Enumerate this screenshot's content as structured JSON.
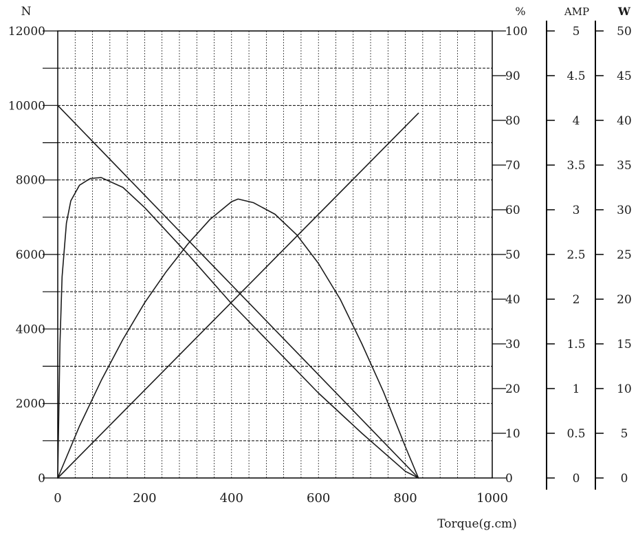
{
  "chart_data": {
    "type": "line",
    "title": "",
    "xlabel": "Torque(g.cm)",
    "xlim": [
      0,
      1000
    ],
    "x_ticks": [
      "0",
      "200",
      "400",
      "600",
      "800",
      "1000"
    ],
    "grid": true,
    "axes": {
      "speed": {
        "label": "N",
        "ylim": [
          0,
          12000
        ],
        "ticks": [
          "0",
          "2000",
          "4000",
          "6000",
          "8000",
          "10000",
          "12000"
        ]
      },
      "efficiency": {
        "label": "%",
        "ylim": [
          0,
          100
        ],
        "ticks": [
          "0",
          "10",
          "20",
          "30",
          "40",
          "50",
          "60",
          "70",
          "80",
          "90",
          "100"
        ]
      },
      "current": {
        "label": "AMP",
        "ylim": [
          0,
          5
        ],
        "ticks": [
          "0",
          "0.5",
          "1",
          "1.5",
          "2",
          "2.5",
          "3",
          "3.5",
          "4",
          "4.5",
          "5"
        ]
      },
      "power": {
        "label": "W",
        "ylim": [
          0,
          50
        ],
        "ticks": [
          "0",
          "5",
          "10",
          "15",
          "20",
          "25",
          "30",
          "35",
          "40",
          "45",
          "50"
        ]
      }
    },
    "series": [
      {
        "axis": "speed",
        "color": "#1a1a1a",
        "x": [
          0,
          830
        ],
        "y": [
          10000,
          0
        ]
      },
      {
        "axis": "current",
        "color": "#1a1a1a",
        "x": [
          0,
          830
        ],
        "y": [
          0,
          4.08
        ]
      },
      {
        "axis": "efficiency",
        "color": "#1a1a1a",
        "x": [
          0,
          5,
          10,
          20,
          30,
          50,
          75,
          100,
          150,
          200,
          300,
          400,
          500,
          600,
          700,
          800,
          830
        ],
        "y": [
          0,
          30,
          45,
          57,
          62,
          65.5,
          67,
          67.2,
          65,
          60.5,
          50,
          39,
          29,
          19,
          10,
          1.5,
          0
        ]
      },
      {
        "axis": "power",
        "color": "#1a1a1a",
        "x": [
          0,
          50,
          100,
          150,
          200,
          250,
          300,
          350,
          400,
          415,
          450,
          500,
          550,
          600,
          650,
          700,
          750,
          800,
          830
        ],
        "y": [
          0,
          5.8,
          10.9,
          15.5,
          19.6,
          23.1,
          26.2,
          28.9,
          30.9,
          31.2,
          30.8,
          29.5,
          27.2,
          24,
          20,
          15,
          9.6,
          3.5,
          0
        ]
      }
    ]
  }
}
